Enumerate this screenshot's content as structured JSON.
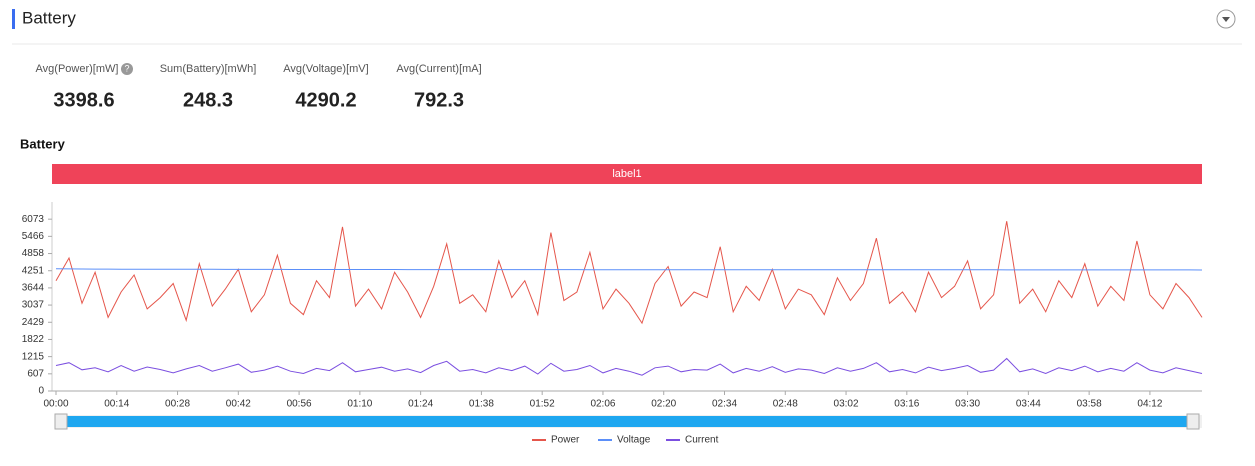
{
  "header": {
    "title": "Battery"
  },
  "stats": [
    {
      "label": "Avg(Power)[mW]",
      "value": "3398.6"
    },
    {
      "label": "Sum(Battery)[mWh]",
      "value": "248.3"
    },
    {
      "label": "Avg(Voltage)[mV]",
      "value": "4290.2"
    },
    {
      "label": "Avg(Current)[mA]",
      "value": "792.3"
    }
  ],
  "chart_data": {
    "type": "line",
    "title": "Battery",
    "band_label": "label1",
    "x": [
      0,
      3,
      6,
      9,
      12,
      15,
      18,
      21,
      24,
      27,
      30,
      33,
      36,
      39,
      42,
      45,
      48,
      51,
      54,
      57,
      60,
      63,
      66,
      69,
      72,
      75,
      78,
      81,
      84,
      87,
      90,
      93,
      96,
      99,
      102,
      105,
      108,
      111,
      114,
      117,
      120,
      123,
      126,
      129,
      132,
      135,
      138,
      141,
      144,
      147,
      150,
      153,
      156,
      159,
      162,
      165,
      168,
      171,
      174,
      177,
      180,
      183,
      186,
      189,
      192,
      195,
      198,
      201,
      204,
      207,
      210,
      213,
      216,
      219,
      222,
      225,
      228,
      231,
      234,
      237,
      240,
      243,
      246,
      249,
      252,
      255,
      258,
      261,
      264
    ],
    "series": [
      {
        "name": "Power",
        "color": "#e5564b",
        "values": [
          3900,
          4700,
          3100,
          4200,
          2600,
          3500,
          4100,
          2900,
          3300,
          3800,
          2500,
          4500,
          3000,
          3600,
          4300,
          2800,
          3400,
          4800,
          3100,
          2700,
          3900,
          3300,
          5800,
          3000,
          3600,
          2900,
          4200,
          3500,
          2600,
          3700,
          5200,
          3100,
          3400,
          2800,
          4600,
          3300,
          3900,
          2700,
          5600,
          3200,
          3500,
          4900,
          2900,
          3600,
          3100,
          2400,
          3800,
          4400,
          3000,
          3500,
          3300,
          5100,
          2800,
          3700,
          3200,
          4300,
          2900,
          3600,
          3400,
          2700,
          4000,
          3200,
          3800,
          5400,
          3100,
          3500,
          2800,
          4200,
          3300,
          3700,
          4600,
          2900,
          3400,
          6000,
          3100,
          3600,
          2800,
          3900,
          3300,
          4500,
          3000,
          3700,
          3200,
          5300,
          3400,
          2900,
          3800,
          3300,
          2600
        ]
      },
      {
        "name": "Voltage",
        "color": "#5b8ff9",
        "values": [
          4320,
          4315,
          4312,
          4310,
          4308,
          4306,
          4305,
          4304,
          4303,
          4302,
          4301,
          4300,
          4300,
          4299,
          4298,
          4298,
          4297,
          4297,
          4296,
          4296,
          4295,
          4295,
          4294,
          4294,
          4294,
          4293,
          4293,
          4292,
          4292,
          4292,
          4291,
          4291,
          4291,
          4290,
          4290,
          4290,
          4290,
          4289,
          4289,
          4289,
          4289,
          4288,
          4288,
          4288,
          4288,
          4287,
          4287,
          4287,
          4287,
          4286,
          4286,
          4286,
          4286,
          4286,
          4285,
          4285,
          4285,
          4285,
          4284,
          4284,
          4284,
          4284,
          4284,
          4283,
          4283,
          4283,
          4283,
          4283,
          4282,
          4282,
          4282,
          4282,
          4282,
          4281,
          4281,
          4281,
          4281,
          4281,
          4280,
          4280,
          4280,
          4280,
          4280,
          4279,
          4279,
          4279,
          4279,
          4279,
          4278
        ]
      },
      {
        "name": "Current",
        "color": "#7b4fe0",
        "values": [
          900,
          1000,
          750,
          820,
          680,
          900,
          700,
          850,
          760,
          640,
          780,
          900,
          700,
          820,
          950,
          660,
          740,
          880,
          700,
          620,
          800,
          720,
          1000,
          680,
          760,
          840,
          700,
          780,
          650,
          900,
          1050,
          700,
          760,
          640,
          820,
          720,
          880,
          600,
          980,
          700,
          760,
          900,
          640,
          800,
          700,
          560,
          820,
          880,
          680,
          760,
          740,
          950,
          640,
          800,
          700,
          860,
          660,
          780,
          740,
          620,
          820,
          700,
          800,
          1000,
          680,
          760,
          640,
          840,
          720,
          800,
          900,
          660,
          740,
          1150,
          680,
          780,
          620,
          820,
          720,
          880,
          680,
          800,
          700,
          1000,
          740,
          640,
          820,
          720,
          620
        ]
      }
    ],
    "xlim": [
      0,
      264
    ],
    "xticks": [
      {
        "value": 0,
        "label": "00:00"
      },
      {
        "value": 14,
        "label": "00:14"
      },
      {
        "value": 28,
        "label": "00:28"
      },
      {
        "value": 42,
        "label": "00:42"
      },
      {
        "value": 56,
        "label": "00:56"
      },
      {
        "value": 70,
        "label": "01:10"
      },
      {
        "value": 84,
        "label": "01:24"
      },
      {
        "value": 98,
        "label": "01:38"
      },
      {
        "value": 112,
        "label": "01:52"
      },
      {
        "value": 126,
        "label": "02:06"
      },
      {
        "value": 140,
        "label": "02:20"
      },
      {
        "value": 154,
        "label": "02:34"
      },
      {
        "value": 168,
        "label": "02:48"
      },
      {
        "value": 182,
        "label": "03:02"
      },
      {
        "value": 196,
        "label": "03:16"
      },
      {
        "value": 210,
        "label": "03:30"
      },
      {
        "value": 224,
        "label": "03:44"
      },
      {
        "value": 238,
        "label": "03:58"
      },
      {
        "value": 252,
        "label": "04:12"
      }
    ],
    "ylim": [
      0,
      6680
    ],
    "yticks": [
      0,
      607,
      1215,
      1822,
      2429,
      3037,
      3644,
      4251,
      4858,
      5466,
      6073
    ]
  }
}
